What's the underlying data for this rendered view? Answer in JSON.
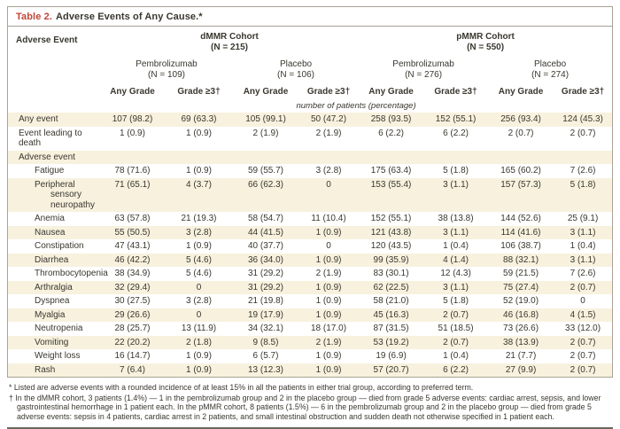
{
  "title": {
    "prefix": "Table 2.",
    "text": "Adverse Events of Any Cause.*"
  },
  "header": {
    "row_label": "Adverse Event",
    "cohorts": [
      {
        "name": "dMMR Cohort",
        "n": "(N = 215)",
        "groups": [
          {
            "name": "Pembrolizumab",
            "n": "(N = 109)"
          },
          {
            "name": "Placebo",
            "n": "(N = 106)"
          }
        ]
      },
      {
        "name": "pMMR Cohort",
        "n": "(N = 550)",
        "groups": [
          {
            "name": "Pembrolizumab",
            "n": "(N = 276)"
          },
          {
            "name": "Placebo",
            "n": "(N = 274)"
          }
        ]
      }
    ],
    "grade_cols": [
      "Any Grade",
      "Grade ≥3†",
      "Any Grade",
      "Grade ≥3†",
      "Any Grade",
      "Grade ≥3†",
      "Any Grade",
      "Grade ≥3†"
    ],
    "units_note": "number of patients (percentage)"
  },
  "rows": [
    {
      "label": "Any event",
      "cells": [
        "107 (98.2)",
        "69 (63.3)",
        "105 (99.1)",
        "50 (47.2)",
        "258 (93.5)",
        "152 (55.1)",
        "256 (93.4)",
        "124 (45.3)"
      ]
    },
    {
      "label": "Event leading to death",
      "cells": [
        "1 (0.9)",
        "1 (0.9)",
        "2 (1.9)",
        "2 (1.9)",
        "6 (2.2)",
        "6 (2.2)",
        "2 (0.7)",
        "2 (0.7)"
      ]
    },
    {
      "label": "Adverse event",
      "section": true
    },
    {
      "label": "Fatigue",
      "indent": true,
      "cells": [
        "78 (71.6)",
        "1 (0.9)",
        "59 (55.7)",
        "3 (2.8)",
        "175 (63.4)",
        "5 (1.8)",
        "165 (60.2)",
        "7 (2.6)"
      ]
    },
    {
      "label": "Peripheral sensory neuropathy",
      "indent": true,
      "cells": [
        "71 (65.1)",
        "4 (3.7)",
        "66 (62.3)",
        "0",
        "153 (55.4)",
        "3 (1.1)",
        "157 (57.3)",
        "5 (1.8)"
      ]
    },
    {
      "label": "Anemia",
      "indent": true,
      "cells": [
        "63 (57.8)",
        "21 (19.3)",
        "58 (54.7)",
        "11 (10.4)",
        "152 (55.1)",
        "38 (13.8)",
        "144 (52.6)",
        "25 (9.1)"
      ]
    },
    {
      "label": "Nausea",
      "indent": true,
      "cells": [
        "55 (50.5)",
        "3 (2.8)",
        "44 (41.5)",
        "1 (0.9)",
        "121 (43.8)",
        "3 (1.1)",
        "114 (41.6)",
        "3 (1.1)"
      ]
    },
    {
      "label": "Constipation",
      "indent": true,
      "cells": [
        "47 (43.1)",
        "1 (0.9)",
        "40 (37.7)",
        "0",
        "120 (43.5)",
        "1 (0.4)",
        "106 (38.7)",
        "1 (0.4)"
      ]
    },
    {
      "label": "Diarrhea",
      "indent": true,
      "cells": [
        "46 (42.2)",
        "5 (4.6)",
        "36 (34.0)",
        "1 (0.9)",
        "99 (35.9)",
        "4 (1.4)",
        "88 (32.1)",
        "3 (1.1)"
      ]
    },
    {
      "label": "Thrombocytopenia",
      "indent": true,
      "cells": [
        "38 (34.9)",
        "5 (4.6)",
        "31 (29.2)",
        "2 (1.9)",
        "83 (30.1)",
        "12 (4.3)",
        "59 (21.5)",
        "7 (2.6)"
      ]
    },
    {
      "label": "Arthralgia",
      "indent": true,
      "cells": [
        "32 (29.4)",
        "0",
        "31 (29.2)",
        "1 (0.9)",
        "62 (22.5)",
        "3 (1.1)",
        "75 (27.4)",
        "2 (0.7)"
      ]
    },
    {
      "label": "Dyspnea",
      "indent": true,
      "cells": [
        "30 (27.5)",
        "3 (2.8)",
        "21 (19.8)",
        "1 (0.9)",
        "58 (21.0)",
        "5 (1.8)",
        "52 (19.0)",
        "0"
      ]
    },
    {
      "label": "Myalgia",
      "indent": true,
      "cells": [
        "29 (26.6)",
        "0",
        "19 (17.9)",
        "1 (0.9)",
        "45 (16.3)",
        "2 (0.7)",
        "46 (16.8)",
        "4 (1.5)"
      ]
    },
    {
      "label": "Neutropenia",
      "indent": true,
      "cells": [
        "28 (25.7)",
        "13 (11.9)",
        "34 (32.1)",
        "18 (17.0)",
        "87 (31.5)",
        "51 (18.5)",
        "73 (26.6)",
        "33 (12.0)"
      ]
    },
    {
      "label": "Vomiting",
      "indent": true,
      "cells": [
        "22 (20.2)",
        "2 (1.8)",
        "9 (8.5)",
        "2 (1.9)",
        "53 (19.2)",
        "2 (0.7)",
        "38 (13.9)",
        "2 (0.7)"
      ]
    },
    {
      "label": "Weight loss",
      "indent": true,
      "cells": [
        "16 (14.7)",
        "1 (0.9)",
        "6 (5.7)",
        "1 (0.9)",
        "19 (6.9)",
        "1 (0.4)",
        "21 (7.7)",
        "2 (0.7)"
      ]
    },
    {
      "label": "Rash",
      "indent": true,
      "cells": [
        "7 (6.4)",
        "1 (0.9)",
        "13 (12.3)",
        "1 (0.9)",
        "57 (20.7)",
        "6 (2.2)",
        "27 (9.9)",
        "2 (0.7)"
      ]
    }
  ],
  "footnotes": [
    {
      "marker": "*",
      "text": "Listed are adverse events with a rounded incidence of at least 15% in all the patients in either trial group, according to preferred term."
    },
    {
      "marker": "†",
      "text": "In the dMMR cohort, 3 patients (1.4%) — 1 in the pembrolizumab group and 2 in the placebo group — died from grade 5 adverse events: cardiac arrest, sepsis, and lower gastrointestinal hemorrhage in 1 patient each. In the pMMR cohort, 8 patients (1.5%) — 6 in the pembrolizumab group and 2 in the placebo group — died from grade 5 adverse events: sepsis in 4 patients, cardiac arrest in 2 patients, and small intestinal obstruction and sudden death not otherwise specified in 1 patient each."
    }
  ],
  "colors": {
    "row_tint": "#f7f1de",
    "accent_red": "#bf4538",
    "border": "#a8a294",
    "bottom_rule": "#6b675c",
    "text": "#3a372f"
  }
}
